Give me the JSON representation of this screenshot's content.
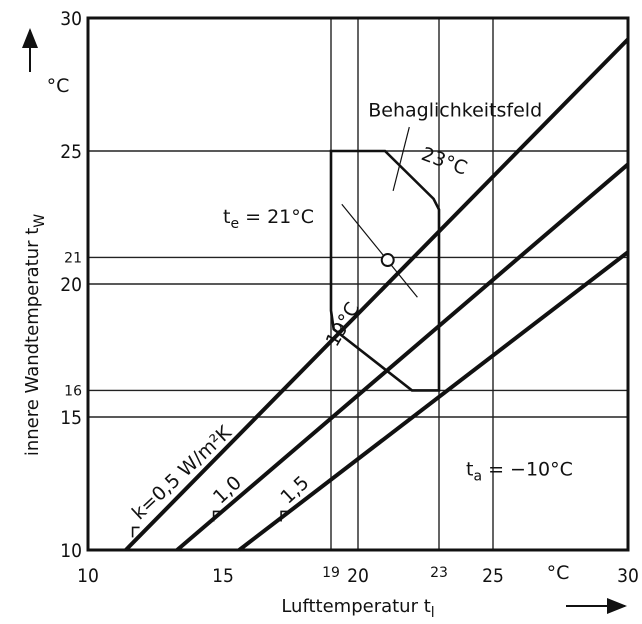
{
  "chart_data": {
    "type": "line",
    "title": "",
    "xlabel": "Lufttemperatur t",
    "xlabel_sub": "l",
    "ylabel": "innere Wandtemperatur t",
    "ylabel_sub": "W",
    "x_unit": "°C",
    "y_unit": "°C",
    "xlim": [
      10,
      30
    ],
    "ylim": [
      10,
      30
    ],
    "grid": true,
    "x_ticks": [
      {
        "value": 10,
        "label": "10",
        "small": false
      },
      {
        "value": 15,
        "label": "15",
        "small": false
      },
      {
        "value": 19,
        "label": "19",
        "small": true
      },
      {
        "value": 20,
        "label": "20",
        "small": false
      },
      {
        "value": 23,
        "label": "23",
        "small": true
      },
      {
        "value": 25,
        "label": "25",
        "small": false
      },
      {
        "value": 30,
        "label": "30",
        "small": false
      }
    ],
    "y_ticks": [
      {
        "value": 10,
        "label": "10",
        "small": false
      },
      {
        "value": 15,
        "label": "15",
        "small": false
      },
      {
        "value": 16,
        "label": "16",
        "small": true
      },
      {
        "value": 20,
        "label": "20",
        "small": false
      },
      {
        "value": 21,
        "label": "21",
        "small": true
      },
      {
        "value": 25,
        "label": "25",
        "small": false
      },
      {
        "value": 30,
        "label": "30",
        "small": false
      }
    ],
    "x_gridlines": [
      19,
      20,
      23,
      25
    ],
    "y_gridlines": [
      15,
      16,
      20,
      21,
      25
    ],
    "series": [
      {
        "name": "k=0,5 W/m²K",
        "x": [
          11.4,
          30
        ],
        "y": [
          10,
          29.2
        ]
      },
      {
        "name": "1,0",
        "x": [
          13.3,
          30
        ],
        "y": [
          10,
          24.5
        ]
      },
      {
        "name": "1,5",
        "x": [
          15.6,
          30
        ],
        "y": [
          10,
          21.2
        ]
      }
    ],
    "series_labels": [
      {
        "text": "k=0,5 W/m²K",
        "x": 11.8,
        "y": 11.0,
        "angle": -43
      },
      {
        "text": "1,0",
        "x": 14.8,
        "y": 11.6,
        "angle": -43
      },
      {
        "text": "1,5",
        "x": 17.3,
        "y": 11.6,
        "angle": -43
      }
    ],
    "comfort_zone": {
      "label": "Behaglichkeitsfeld",
      "polygon_x": [
        19,
        21,
        22.8,
        23,
        23,
        22,
        19.1,
        19
      ],
      "polygon_y": [
        25,
        25,
        23.2,
        22.8,
        16,
        16,
        18.3,
        19
      ],
      "label_x": 23.6,
      "label_y": 26.3,
      "leader_from_x": 21.9,
      "leader_from_y": 25.9,
      "leader_to_x": 21.3,
      "leader_to_y": 23.5
    },
    "isotherms": [
      {
        "text": "23°C",
        "x": 22.3,
        "y": 24.7,
        "angle": 20
      },
      {
        "text": "19°C",
        "x": 19.2,
        "y": 17.6,
        "angle": -60
      }
    ],
    "operative_point": {
      "label": "t",
      "label_sub": "e",
      "label_rest": " = 21°C",
      "x": 21.1,
      "y": 20.9,
      "label_x": 15.0,
      "label_y": 22.3,
      "line_x": [
        19.4,
        22.2
      ],
      "line_y": [
        23.0,
        19.5
      ]
    },
    "outdoor_label": {
      "text": "t",
      "sub": "a",
      "rest": " = −10°C",
      "x": 24.0,
      "y": 12.8
    }
  }
}
